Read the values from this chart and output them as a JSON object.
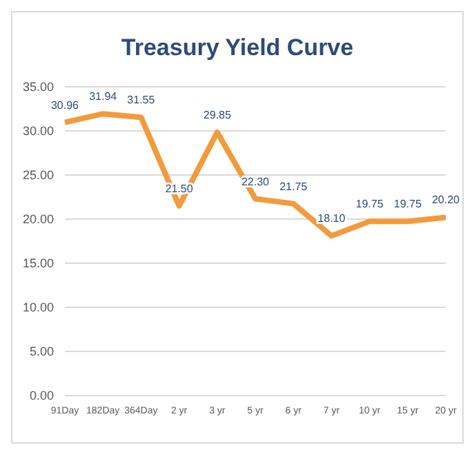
{
  "chart_data": {
    "type": "line",
    "title": "Treasury Yield Curve",
    "categories": [
      "91Day",
      "182Day",
      "364Day",
      "2 yr",
      "3 yr",
      "5 yr",
      "6 yr",
      "7 yr",
      "10 yr",
      "15 yr",
      "20 yr"
    ],
    "series": [
      {
        "color": "#f39a3c",
        "values": [
          30.96,
          31.94,
          31.55,
          21.5,
          29.85,
          22.3,
          21.75,
          18.1,
          19.75,
          19.75,
          20.2
        ],
        "value_labels": [
          "30.96",
          "31.94",
          "31.55",
          "21.50",
          "29.85",
          "22.30",
          "21.75",
          "18.10",
          "19.75",
          "19.75",
          "20.20"
        ]
      }
    ],
    "ylim": [
      0,
      35
    ],
    "yticks": [
      {
        "value": 0,
        "label": "0.00"
      },
      {
        "value": 5,
        "label": "5.00"
      },
      {
        "value": 10,
        "label": "10.00"
      },
      {
        "value": 15,
        "label": "15.00"
      },
      {
        "value": 20,
        "label": "20.00"
      },
      {
        "value": 25,
        "label": "25.00"
      },
      {
        "value": 30,
        "label": "30.00"
      },
      {
        "value": 35,
        "label": "35.00"
      }
    ],
    "grid": "y",
    "legend": false,
    "marker": "none",
    "line_style": "solid"
  }
}
